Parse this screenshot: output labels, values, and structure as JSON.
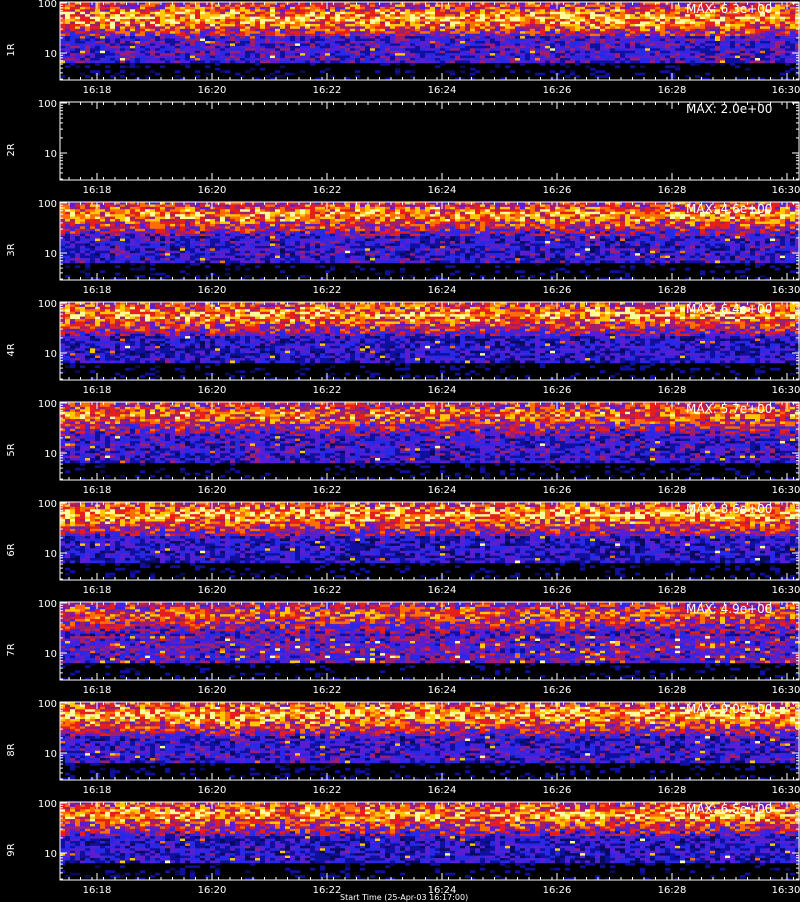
{
  "chart_data": {
    "type": "heatmap",
    "colormap": [
      "#000000",
      "#0a0a5a",
      "#1010a0",
      "#2828e6",
      "#5a1ed2",
      "#a01e6e",
      "#e61e1e",
      "#ff6e00",
      "#ffc800",
      "#ffff9a"
    ],
    "time_ticks": [
      "16:18",
      "16:20",
      "16:22",
      "16:24",
      "16:26",
      "16:28",
      "16:30"
    ],
    "time_range": [
      "16:17:00",
      "16:30:00"
    ],
    "y_tick_labels": [
      "100",
      "10"
    ],
    "y_scale": "log",
    "footer_text": "Start Time (25-Apr-03 16:17:00)",
    "panels": [
      {
        "label": "1R",
        "max_text": "MAX: 6.3e+00",
        "max": 6.3,
        "band_center": 0.2,
        "band_intensity": 0.85,
        "noise_floor": 0.6
      },
      {
        "label": "2R",
        "max_text": "MAX: 2.0e+00",
        "max": 2.0,
        "band_center": 0.2,
        "band_intensity": 0.0,
        "noise_floor": 0.0
      },
      {
        "label": "3R",
        "max_text": "MAX: 4.6e+00",
        "max": 4.6,
        "band_center": 0.15,
        "band_intensity": 0.8,
        "noise_floor": 0.55
      },
      {
        "label": "4R",
        "max_text": "MAX: 6.4e+00",
        "max": 6.4,
        "band_center": 0.15,
        "band_intensity": 0.82,
        "noise_floor": 0.5
      },
      {
        "label": "5R",
        "max_text": "MAX: 5.7e+00",
        "max": 5.7,
        "band_center": 0.15,
        "band_intensity": 0.75,
        "noise_floor": 0.55
      },
      {
        "label": "6R",
        "max_text": "MAX: 8.6e+00",
        "max": 8.6,
        "band_center": 0.15,
        "band_intensity": 0.85,
        "noise_floor": 0.5
      },
      {
        "label": "7R",
        "max_text": "MAX: 4.9e+00",
        "max": 4.9,
        "band_center": 0.15,
        "band_intensity": 0.7,
        "noise_floor": 0.7
      },
      {
        "label": "8R",
        "max_text": "MAX: 9.0e+00",
        "max": 9.0,
        "band_center": 0.15,
        "band_intensity": 0.85,
        "noise_floor": 0.55
      },
      {
        "label": "9R",
        "max_text": "MAX: 6.5e+00",
        "max": 6.5,
        "band_center": 0.15,
        "band_intensity": 0.82,
        "noise_floor": 0.5
      }
    ]
  }
}
